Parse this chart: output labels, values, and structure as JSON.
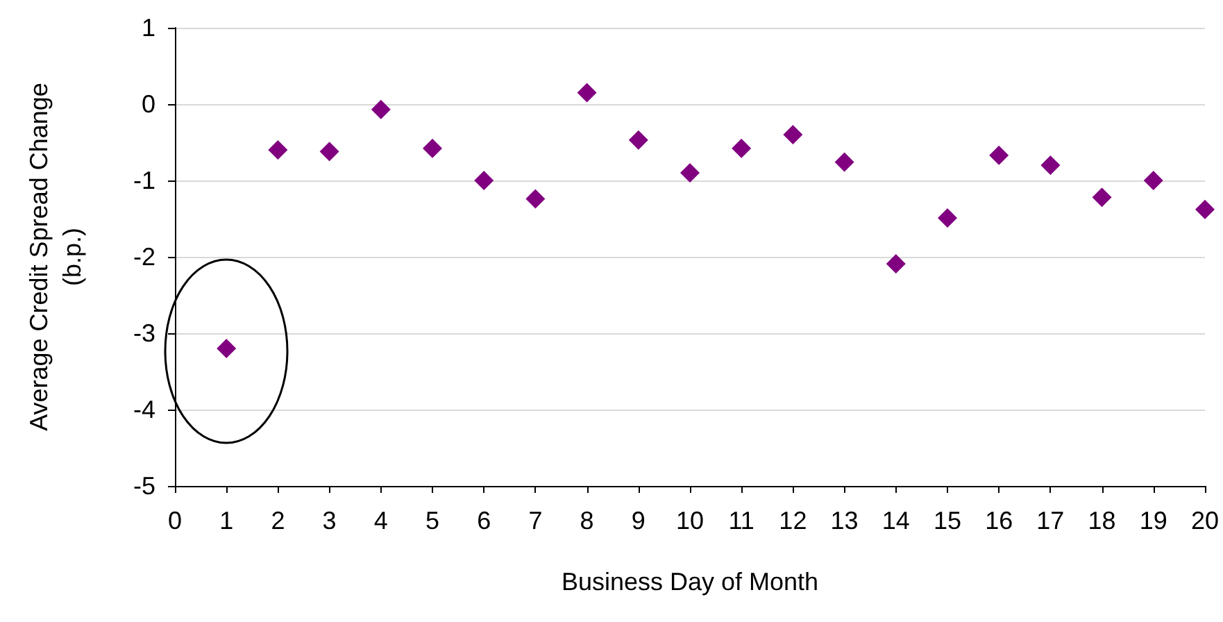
{
  "chart_data": {
    "type": "scatter",
    "xlabel": "Business Day of Month",
    "ylabel": "Average Credit Spread Change\n(b.p.)",
    "x": [
      1,
      2,
      3,
      4,
      5,
      6,
      7,
      8,
      9,
      10,
      11,
      12,
      13,
      14,
      15,
      16,
      17,
      18,
      19,
      20
    ],
    "values": [
      -3.2,
      -0.6,
      -0.62,
      -0.07,
      -0.58,
      -1.0,
      -1.24,
      0.15,
      -0.47,
      -0.9,
      -0.58,
      -0.4,
      -0.76,
      -2.09,
      -1.49,
      -0.67,
      -0.8,
      -1.22,
      -1.0,
      -1.38
    ],
    "color": "#800080",
    "marker": "diamond",
    "xlim": [
      0,
      20
    ],
    "xticks": [
      0,
      1,
      2,
      3,
      4,
      5,
      6,
      7,
      8,
      9,
      10,
      11,
      12,
      13,
      14,
      15,
      16,
      17,
      18,
      19,
      20
    ],
    "ylim": [
      -5,
      1
    ],
    "yticks": [
      -5,
      -4,
      -3,
      -2,
      -1,
      0,
      1
    ],
    "grid": "y"
  }
}
